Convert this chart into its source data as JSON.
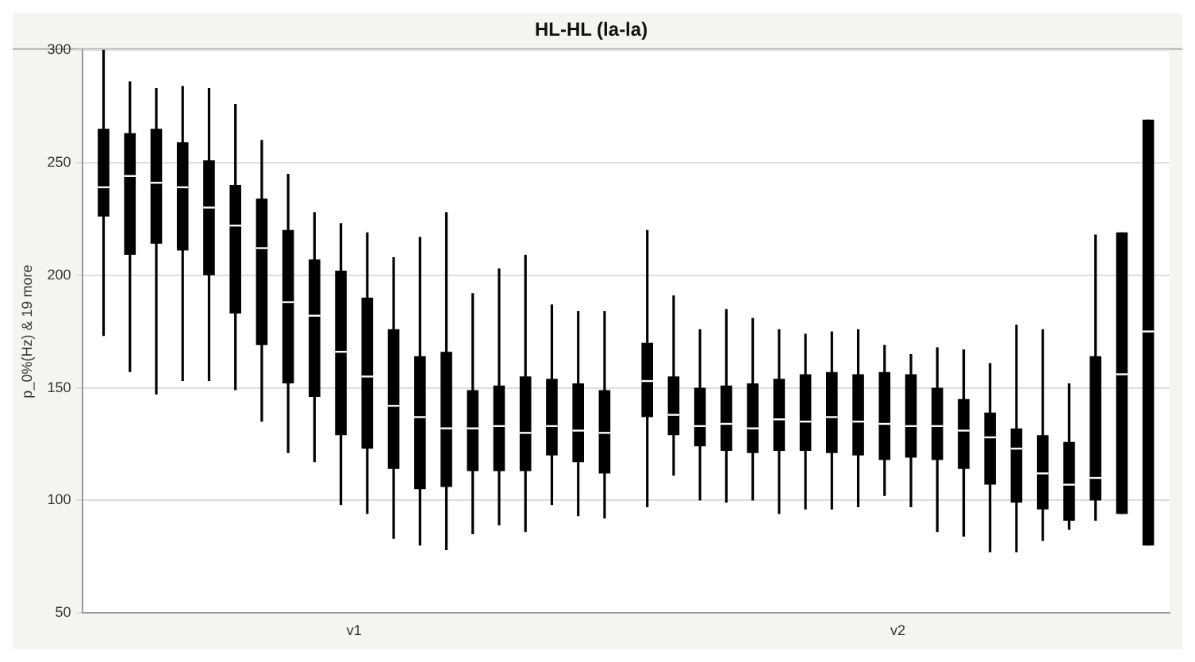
{
  "chart_data": {
    "type": "box",
    "title": "HL-HL (la-la)",
    "ylabel": "p_0%(Hz) & 19 more",
    "categories": [
      "v1",
      "v2"
    ],
    "ylim": [
      50,
      300
    ],
    "yticks": [
      50,
      100,
      150,
      200,
      250,
      300
    ],
    "grid": "y",
    "legend": false,
    "series": [
      {
        "color": "#000000",
        "boxes": [
          {
            "low": 173,
            "q1": 226,
            "median": 239,
            "q3": 265,
            "high": 300
          },
          {
            "low": 97,
            "q1": 137,
            "median": 153,
            "q3": 170,
            "high": 220
          }
        ]
      },
      {
        "color": "#000000",
        "boxes": [
          {
            "low": 157,
            "q1": 209,
            "median": 244,
            "q3": 263,
            "high": 286
          },
          {
            "low": 111,
            "q1": 129,
            "median": 138,
            "q3": 155,
            "high": 191
          }
        ]
      },
      {
        "color": "#000000",
        "boxes": [
          {
            "low": 147,
            "q1": 214,
            "median": 241,
            "q3": 265,
            "high": 283
          },
          {
            "low": 100,
            "q1": 124,
            "median": 133,
            "q3": 150,
            "high": 176
          }
        ]
      },
      {
        "color": "#000000",
        "boxes": [
          {
            "low": 153,
            "q1": 211,
            "median": 239,
            "q3": 259,
            "high": 284
          },
          {
            "low": 99,
            "q1": 122,
            "median": 134,
            "q3": 151,
            "high": 185
          }
        ]
      },
      {
        "color": "#000000",
        "boxes": [
          {
            "low": 153,
            "q1": 200,
            "median": 230,
            "q3": 251,
            "high": 283
          },
          {
            "low": 100,
            "q1": 121,
            "median": 132,
            "q3": 152,
            "high": 181
          }
        ]
      },
      {
        "color": "#000000",
        "boxes": [
          {
            "low": 149,
            "q1": 183,
            "median": 222,
            "q3": 240,
            "high": 276
          },
          {
            "low": 94,
            "q1": 122,
            "median": 136,
            "q3": 154,
            "high": 176
          }
        ]
      },
      {
        "color": "#000000",
        "boxes": [
          {
            "low": 135,
            "q1": 169,
            "median": 212,
            "q3": 234,
            "high": 260
          },
          {
            "low": 96,
            "q1": 122,
            "median": 135,
            "q3": 156,
            "high": 174
          }
        ]
      },
      {
        "color": "#000000",
        "boxes": [
          {
            "low": 121,
            "q1": 152,
            "median": 188,
            "q3": 220,
            "high": 245
          },
          {
            "low": 96,
            "q1": 121,
            "median": 137,
            "q3": 157,
            "high": 175
          }
        ]
      },
      {
        "color": "#000000",
        "boxes": [
          {
            "low": 117,
            "q1": 146,
            "median": 182,
            "q3": 207,
            "high": 228
          },
          {
            "low": 97,
            "q1": 120,
            "median": 135,
            "q3": 156,
            "high": 176
          }
        ]
      },
      {
        "color": "#000000",
        "boxes": [
          {
            "low": 98,
            "q1": 129,
            "median": 166,
            "q3": 202,
            "high": 223
          },
          {
            "low": 102,
            "q1": 118,
            "median": 134,
            "q3": 157,
            "high": 169
          }
        ]
      },
      {
        "color": "#000000",
        "boxes": [
          {
            "low": 94,
            "q1": 123,
            "median": 155,
            "q3": 190,
            "high": 219
          },
          {
            "low": 97,
            "q1": 119,
            "median": 133,
            "q3": 156,
            "high": 165
          }
        ]
      },
      {
        "color": "#000000",
        "boxes": [
          {
            "low": 83,
            "q1": 114,
            "median": 142,
            "q3": 176,
            "high": 208
          },
          {
            "low": 86,
            "q1": 118,
            "median": 133,
            "q3": 150,
            "high": 168
          }
        ]
      },
      {
        "color": "#000000",
        "boxes": [
          {
            "low": 80,
            "q1": 105,
            "median": 137,
            "q3": 164,
            "high": 217
          },
          {
            "low": 84,
            "q1": 114,
            "median": 131,
            "q3": 145,
            "high": 167
          }
        ]
      },
      {
        "color": "#000000",
        "boxes": [
          {
            "low": 78,
            "q1": 106,
            "median": 132,
            "q3": 166,
            "high": 228
          },
          {
            "low": 77,
            "q1": 107,
            "median": 128,
            "q3": 139,
            "high": 161
          }
        ]
      },
      {
        "color": "#000000",
        "boxes": [
          {
            "low": 85,
            "q1": 113,
            "median": 132,
            "q3": 149,
            "high": 192
          },
          {
            "low": 77,
            "q1": 99,
            "median": 123,
            "q3": 132,
            "high": 178
          }
        ]
      },
      {
        "color": "#000000",
        "boxes": [
          {
            "low": 89,
            "q1": 113,
            "median": 133,
            "q3": 151,
            "high": 203
          },
          {
            "low": 82,
            "q1": 96,
            "median": 112,
            "q3": 129,
            "high": 176
          }
        ]
      },
      {
        "color": "#000000",
        "boxes": [
          {
            "low": 86,
            "q1": 113,
            "median": 130,
            "q3": 155,
            "high": 209
          },
          {
            "low": 87,
            "q1": 91,
            "median": 107,
            "q3": 126,
            "high": 152
          }
        ]
      },
      {
        "color": "#000000",
        "boxes": [
          {
            "low": 98,
            "q1": 120,
            "median": 133,
            "q3": 154,
            "high": 187
          },
          {
            "low": 91,
            "q1": 100,
            "median": 110,
            "q3": 164,
            "high": 218
          }
        ]
      },
      {
        "color": "#000000",
        "boxes": [
          {
            "low": 93,
            "q1": 117,
            "median": 131,
            "q3": 152,
            "high": 184
          },
          {
            "low": 94,
            "q1": 94,
            "median": 156,
            "q3": 219,
            "high": 219
          }
        ]
      },
      {
        "color": "#000000",
        "boxes": [
          {
            "low": 92,
            "q1": 112,
            "median": 130,
            "q3": 149,
            "high": 184
          },
          {
            "low": 80,
            "q1": 80,
            "median": 175,
            "q3": 269,
            "high": 269
          }
        ]
      }
    ]
  }
}
